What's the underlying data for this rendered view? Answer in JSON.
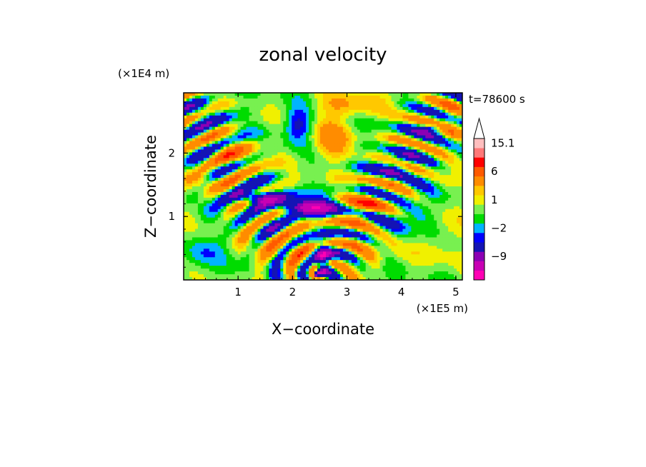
{
  "chart_data": {
    "type": "heatmap",
    "title": "zonal velocity",
    "xlabel": "X−coordinate",
    "ylabel": "Z−coordinate",
    "x_unit": "(×1E5 m)",
    "y_unit": "(×1E4 m)",
    "time_label": "t=78600 s",
    "xlim": [
      0,
      5.12
    ],
    "ylim": [
      0,
      2.95
    ],
    "x_ticks": [
      "1",
      "2",
      "3",
      "4",
      "5"
    ],
    "x_tick_values": [
      1,
      2,
      3,
      4,
      5
    ],
    "y_ticks": [
      "1",
      "2"
    ],
    "y_tick_values": [
      1,
      2
    ],
    "colorbar": {
      "levels": [
        -15,
        -12,
        -9,
        -6,
        -3,
        -2,
        -1,
        0,
        1,
        2,
        3,
        6,
        9,
        12,
        15.1
      ],
      "colors": [
        "#ff00b4",
        "#c800b4",
        "#8c00b4",
        "#1414b4",
        "#0000ff",
        "#00b4ff",
        "#00dc00",
        "#78f050",
        "#f0f000",
        "#ffc800",
        "#ff8c00",
        "#ff5a00",
        "#ff0000",
        "#ff7878",
        "#ffbebe"
      ],
      "labels": [
        {
          "text": "15.1",
          "value": 15.1
        },
        {
          "text": "6",
          "value": 6
        },
        {
          "text": "1",
          "value": 1
        },
        {
          "text": "−2",
          "value": -2
        },
        {
          "text": "−9",
          "value": -9
        }
      ],
      "extend": "max"
    },
    "features": [
      {
        "x": 2.35,
        "z": 1.15,
        "amp": -12,
        "sx": 0.6,
        "sz": 0.12
      },
      {
        "x": 1.35,
        "z": 1.3,
        "amp": -9,
        "sx": 0.5,
        "sz": 0.1
      },
      {
        "x": 3.3,
        "z": 1.15,
        "amp": 7,
        "sx": 0.45,
        "sz": 0.18
      },
      {
        "x": 4.0,
        "z": 1.0,
        "amp": -2.5,
        "sx": 0.5,
        "sz": 0.35
      },
      {
        "x": 4.6,
        "z": 2.4,
        "amp": -6,
        "sx": 0.25,
        "sz": 0.08
      },
      {
        "x": 3.95,
        "z": 1.85,
        "amp": -5,
        "sx": 0.3,
        "sz": 0.15
      },
      {
        "x": 2.1,
        "z": 2.45,
        "amp": -4,
        "sx": 0.25,
        "sz": 0.25
      },
      {
        "x": 1.0,
        "z": 1.95,
        "amp": 3.5,
        "sx": 0.4,
        "sz": 0.2
      },
      {
        "x": 0.4,
        "z": 1.55,
        "amp": 3,
        "sx": 0.3,
        "sz": 0.15
      },
      {
        "x": 0.5,
        "z": 2.6,
        "amp": -2.5,
        "sx": 0.35,
        "sz": 0.15
      },
      {
        "x": 1.9,
        "z": 0.5,
        "amp": 3,
        "sx": 0.5,
        "sz": 0.2
      },
      {
        "x": 2.55,
        "z": 0.3,
        "amp": -9,
        "sx": 0.15,
        "sz": 0.25
      },
      {
        "x": 3.5,
        "z": 0.45,
        "amp": 2.5,
        "sx": 0.4,
        "sz": 0.25
      },
      {
        "x": 4.7,
        "z": 0.6,
        "amp": 1.5,
        "sx": 0.4,
        "sz": 0.4
      },
      {
        "x": 3.0,
        "z": 2.75,
        "amp": 3,
        "sx": 0.6,
        "sz": 0.2
      },
      {
        "x": 4.95,
        "z": 2.6,
        "amp": 3,
        "sx": 0.2,
        "sz": 0.35
      },
      {
        "x": 2.7,
        "z": 2.2,
        "amp": 4,
        "sx": 0.35,
        "sz": 0.3
      },
      {
        "x": 0.3,
        "z": 0.4,
        "amp": -2,
        "sx": 0.3,
        "sz": 0.3
      }
    ]
  }
}
